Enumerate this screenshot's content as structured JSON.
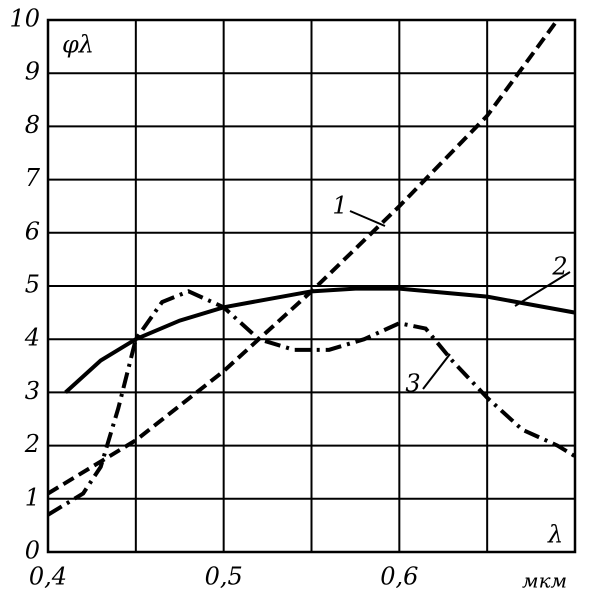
{
  "chart_data": {
    "type": "line",
    "ylabel": "φλ",
    "xlabel": "λ",
    "xunit": "мкм",
    "xlim": [
      0.4,
      0.7
    ],
    "ylim": [
      0,
      10
    ],
    "xticks": [
      {
        "value": 0.4,
        "label": "0,4"
      },
      {
        "value": 0.5,
        "label": "0,5"
      },
      {
        "value": 0.6,
        "label": "0,6"
      }
    ],
    "xgrid": [
      0.45,
      0.55,
      0.65
    ],
    "yticks": [
      0,
      1,
      2,
      3,
      4,
      5,
      6,
      7,
      8,
      9,
      10
    ],
    "grid": true,
    "series": [
      {
        "name": "1",
        "color": "#000",
        "dash": "dashed",
        "x": [
          0.4,
          0.45,
          0.5,
          0.55,
          0.6,
          0.65,
          0.69
        ],
        "values": [
          1.1,
          2.1,
          3.4,
          4.9,
          6.5,
          8.2,
          10
        ]
      },
      {
        "name": "2",
        "color": "#000",
        "dash": "solid",
        "x": [
          0.41,
          0.43,
          0.45,
          0.475,
          0.5,
          0.55,
          0.575,
          0.6,
          0.65,
          0.7
        ],
        "values": [
          3.0,
          3.6,
          4.0,
          4.35,
          4.6,
          4.9,
          4.95,
          4.95,
          4.8,
          4.5
        ]
      },
      {
        "name": "3",
        "color": "#000",
        "dash": "dashdot",
        "x": [
          0.4,
          0.42,
          0.43,
          0.44,
          0.45,
          0.465,
          0.48,
          0.5,
          0.52,
          0.54,
          0.56,
          0.58,
          0.6,
          0.615,
          0.63,
          0.65,
          0.67,
          0.69,
          0.7
        ],
        "values": [
          0.7,
          1.1,
          1.6,
          2.7,
          4.0,
          4.7,
          4.9,
          4.6,
          4.0,
          3.8,
          3.8,
          4.0,
          4.3,
          4.2,
          3.6,
          2.9,
          2.3,
          2.0,
          1.8
        ]
      }
    ]
  }
}
